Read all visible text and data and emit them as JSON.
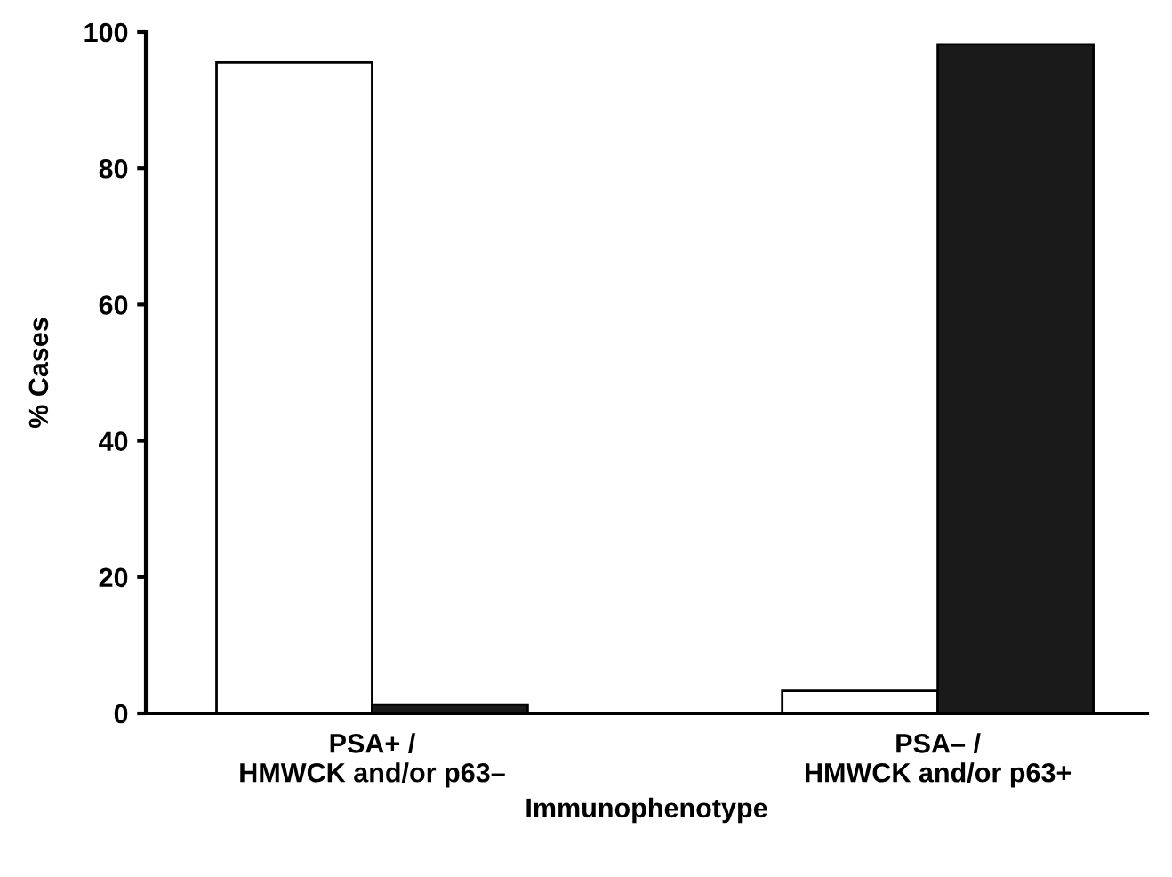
{
  "chart_data": {
    "type": "bar",
    "xlabel": "Immunophenotype",
    "ylabel": "% Cases",
    "categories": [
      "PSA+ /\nHMWCK and/or p63–",
      "PSA– /\nHMWCK and/or p63+"
    ],
    "series": [
      {
        "color": "#ffffff",
        "values": [
          95.5,
          3.3
        ]
      },
      {
        "color": "#1a1a1a",
        "values": [
          1.3,
          98.2
        ]
      }
    ],
    "ylim": [
      0,
      100
    ],
    "yticks": [
      0,
      20,
      40,
      60,
      80,
      100
    ],
    "grid": false,
    "legend": false
  }
}
